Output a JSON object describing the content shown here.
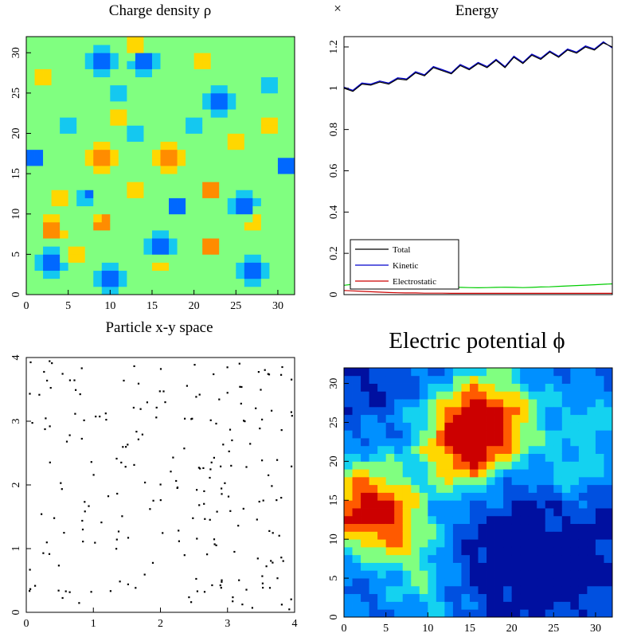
{
  "chart_data": [
    {
      "id": "charge",
      "type": "heatmap",
      "title": "Charge density ρ",
      "xlim": [
        0,
        32
      ],
      "ylim": [
        0,
        32
      ],
      "xticks": [
        "0",
        "5",
        "10",
        "15",
        "20",
        "25",
        "30"
      ],
      "yticks": [
        "0",
        "5",
        "10",
        "15",
        "20",
        "25",
        "30"
      ],
      "levels": [
        "#0010a0",
        "#0068ff",
        "#14c8f0",
        "#80ff80",
        "#ffd700",
        "#ff8c00",
        "#ff1e00"
      ],
      "background_level": 3,
      "blobs": [
        {
          "x": 3,
          "y": 8,
          "v": 2
        },
        {
          "x": 9,
          "y": 17,
          "v": 3
        },
        {
          "x": 17,
          "y": 17,
          "v": 3
        },
        {
          "x": 22,
          "y": 6,
          "v": 2
        },
        {
          "x": 13,
          "y": 31,
          "v": 2
        },
        {
          "x": 22,
          "y": 13,
          "v": 2
        },
        {
          "x": 9,
          "y": 9,
          "v": 2
        },
        {
          "x": 2,
          "y": 27,
          "v": 1
        },
        {
          "x": 21,
          "y": 29,
          "v": 1
        },
        {
          "x": 27,
          "y": 9,
          "v": 1
        },
        {
          "x": 6,
          "y": 5,
          "v": 1
        },
        {
          "x": 16,
          "y": 4,
          "v": 1
        },
        {
          "x": 11,
          "y": 22,
          "v": 1
        },
        {
          "x": 29,
          "y": 21,
          "v": 1
        },
        {
          "x": 25,
          "y": 19,
          "v": 1
        },
        {
          "x": 4,
          "y": 12,
          "v": 1
        },
        {
          "x": 13,
          "y": 13,
          "v": 1
        },
        {
          "x": 9,
          "y": 29,
          "v": -3
        },
        {
          "x": 14,
          "y": 29,
          "v": -3
        },
        {
          "x": 23,
          "y": 24,
          "v": -3
        },
        {
          "x": 16,
          "y": 6,
          "v": -3
        },
        {
          "x": 27,
          "y": 3,
          "v": -3
        },
        {
          "x": 10,
          "y": 2,
          "v": -3
        },
        {
          "x": 3,
          "y": 4,
          "v": -3
        },
        {
          "x": 26,
          "y": 11,
          "v": -3
        },
        {
          "x": 1,
          "y": 17,
          "v": -2
        },
        {
          "x": 31,
          "y": 16,
          "v": -2
        },
        {
          "x": 7,
          "y": 12,
          "v": -2
        },
        {
          "x": 18,
          "y": 11,
          "v": -2
        },
        {
          "x": 11,
          "y": 25,
          "v": -1
        },
        {
          "x": 29,
          "y": 26,
          "v": -1
        },
        {
          "x": 5,
          "y": 21,
          "v": -1
        },
        {
          "x": 20,
          "y": 21,
          "v": -1
        },
        {
          "x": 13,
          "y": 20,
          "v": -1
        }
      ]
    },
    {
      "id": "energy",
      "type": "line",
      "title": "Energy",
      "multiplier_symbol": "×",
      "xlim": [
        0,
        1
      ],
      "ylim": [
        0,
        1.25
      ],
      "yticks": [
        "0",
        "0.2",
        "0.4",
        "0.6",
        "0.8",
        "1",
        "1.2"
      ],
      "legend_position": "bottom-left",
      "series": [
        {
          "name": "Total",
          "color": "#000000",
          "values": [
            1.0,
            0.985,
            1.02,
            1.015,
            1.03,
            1.02,
            1.045,
            1.04,
            1.075,
            1.06,
            1.1,
            1.085,
            1.07,
            1.11,
            1.09,
            1.12,
            1.1,
            1.135,
            1.1,
            1.15,
            1.12,
            1.16,
            1.14,
            1.175,
            1.15,
            1.185,
            1.17,
            1.2,
            1.185,
            1.22,
            1.2
          ]
        },
        {
          "name": "Kinetic",
          "color": "#0000cc",
          "values": [
            1.005,
            0.99,
            1.025,
            1.02,
            1.035,
            1.025,
            1.05,
            1.045,
            1.08,
            1.065,
            1.105,
            1.09,
            1.075,
            1.115,
            1.095,
            1.125,
            1.105,
            1.14,
            1.105,
            1.155,
            1.125,
            1.165,
            1.145,
            1.18,
            1.155,
            1.19,
            1.175,
            1.205,
            1.19,
            1.225,
            1.195
          ]
        },
        {
          "name": "Electrostatic",
          "color": "#cc0000",
          "values": [
            0.02,
            0.018,
            0.016,
            0.014,
            0.012,
            0.01,
            0.009,
            0.008,
            0.008,
            0.007,
            0.007,
            0.007,
            0.006,
            0.006,
            0.006,
            0.006,
            0.006,
            0.006,
            0.006,
            0.006,
            0.006,
            0.006,
            0.006,
            0.006,
            0.006,
            0.006,
            0.006,
            0.006,
            0.006,
            0.006,
            0.006
          ]
        },
        {
          "name": "",
          "color": "#00cc00",
          "values": [
            0.045,
            0.05,
            0.045,
            0.04,
            0.038,
            0.036,
            0.035,
            0.034,
            0.034,
            0.033,
            0.034,
            0.035,
            0.036,
            0.035,
            0.034,
            0.033,
            0.034,
            0.035,
            0.036,
            0.035,
            0.034,
            0.035,
            0.037,
            0.038,
            0.04,
            0.042,
            0.044,
            0.046,
            0.048,
            0.05,
            0.052
          ]
        }
      ]
    },
    {
      "id": "particles",
      "type": "scatter",
      "title": "Particle x-y space",
      "xlim": [
        0,
        4
      ],
      "ylim": [
        0,
        4
      ],
      "xticks": [
        "0",
        "1",
        "2",
        "3",
        "4"
      ],
      "yticks": [
        "0",
        "1",
        "2",
        "3",
        "4"
      ],
      "count": 220,
      "seed": 7
    },
    {
      "id": "potential",
      "type": "heatmap",
      "title": "Electric potential ϕ",
      "xlim": [
        0,
        32
      ],
      "ylim": [
        0,
        32
      ],
      "xticks": [
        "0",
        "5",
        "10",
        "15",
        "20",
        "25",
        "30"
      ],
      "yticks": [
        "0",
        "5",
        "10",
        "15",
        "20",
        "25",
        "30"
      ],
      "levels": [
        "#0010a0",
        "#0050e0",
        "#0090ff",
        "#14d2f0",
        "#80ff80",
        "#ffd700",
        "#ff5a00",
        "#cc0000"
      ],
      "offset": 0.22,
      "blobs": [
        {
          "x": 16,
          "y": 25,
          "a": 0.85,
          "s": 4.5
        },
        {
          "x": 3,
          "y": 14,
          "a": 0.75,
          "s": 4
        },
        {
          "x": 8,
          "y": 9,
          "a": 0.25,
          "s": 3
        },
        {
          "x": 14,
          "y": 20,
          "a": 0.25,
          "s": 3
        },
        {
          "x": 30,
          "y": 25,
          "a": 0.2,
          "s": 3
        },
        {
          "x": 27,
          "y": 18,
          "a": 0.22,
          "s": 3
        },
        {
          "x": 10,
          "y": 3,
          "a": 0.2,
          "s": 3
        },
        {
          "x": 20,
          "y": 7,
          "a": -0.2,
          "s": 5
        },
        {
          "x": 27,
          "y": 6,
          "a": -0.15,
          "s": 4
        },
        {
          "x": 11,
          "y": 29,
          "a": -0.12,
          "s": 3
        },
        {
          "x": 31,
          "y": 13,
          "a": -0.12,
          "s": 3
        },
        {
          "x": 22,
          "y": 16,
          "a": -0.12,
          "s": 3
        },
        {
          "x": 2,
          "y": 30,
          "a": -0.1,
          "s": 3
        }
      ]
    }
  ]
}
